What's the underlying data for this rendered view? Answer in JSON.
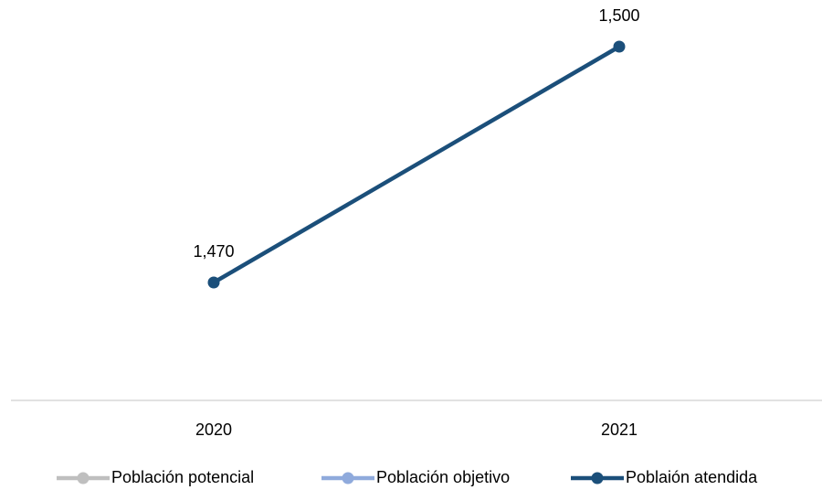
{
  "chart_data": {
    "type": "line",
    "categories": [
      "2020",
      "2021"
    ],
    "series": [
      {
        "name": "Población potencial",
        "color": "#bfbfbf",
        "values": [
          null,
          null
        ]
      },
      {
        "name": "Población objetivo",
        "color": "#8faadc",
        "values": [
          null,
          null
        ]
      },
      {
        "name": "Poblaión atendida",
        "color": "#1b4f7a",
        "values": [
          1470,
          1500
        ],
        "value_labels": [
          "1,470",
          "1,500"
        ]
      }
    ],
    "ylim": [
      1455,
      1505
    ]
  }
}
